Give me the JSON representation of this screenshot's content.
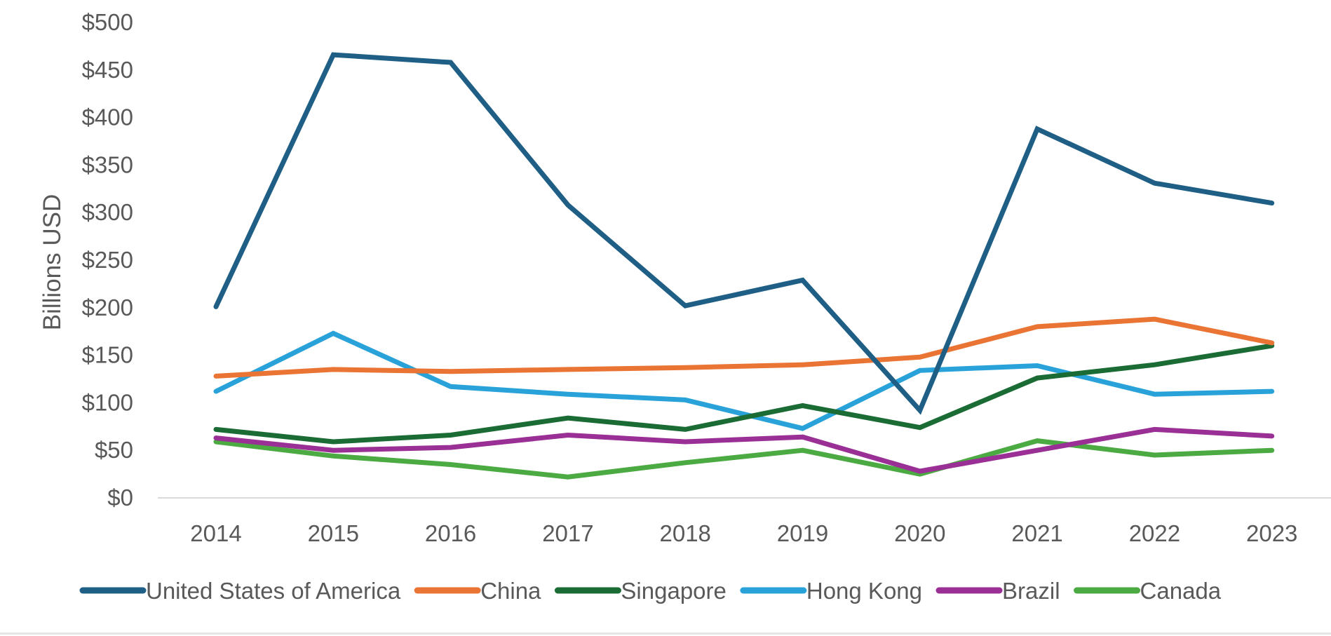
{
  "chart_data": {
    "type": "line",
    "title": "",
    "xlabel": "",
    "ylabel": "Billions USD",
    "x": [
      "2014",
      "2015",
      "2016",
      "2017",
      "2018",
      "2019",
      "2020",
      "2021",
      "2022",
      "2023"
    ],
    "yticks": [
      "$0",
      "$50",
      "$100",
      "$150",
      "$200",
      "$250",
      "$300",
      "$350",
      "$400",
      "$450",
      "$500"
    ],
    "ylim": [
      0,
      500
    ],
    "grid": false,
    "legend_position": "bottom",
    "series": [
      {
        "name": "United States of America",
        "color": "#1F5F86",
        "values": [
          201,
          466,
          458,
          308,
          202,
          229,
          92,
          388,
          331,
          310
        ]
      },
      {
        "name": "China",
        "color": "#E97434",
        "values": [
          128,
          135,
          133,
          135,
          137,
          140,
          148,
          180,
          188,
          163
        ]
      },
      {
        "name": "Singapore",
        "color": "#1B6B35",
        "values": [
          72,
          59,
          66,
          84,
          72,
          97,
          74,
          126,
          140,
          160
        ]
      },
      {
        "name": "Hong Kong",
        "color": "#29A2D9",
        "values": [
          112,
          173,
          117,
          109,
          103,
          73,
          134,
          139,
          109,
          112
        ]
      },
      {
        "name": "Brazil",
        "color": "#9A2F95",
        "values": [
          63,
          50,
          53,
          66,
          59,
          64,
          28,
          50,
          72,
          65
        ]
      },
      {
        "name": "Canada",
        "color": "#4CAA43",
        "values": [
          59,
          44,
          35,
          22,
          37,
          50,
          25,
          60,
          45,
          50
        ]
      }
    ]
  }
}
